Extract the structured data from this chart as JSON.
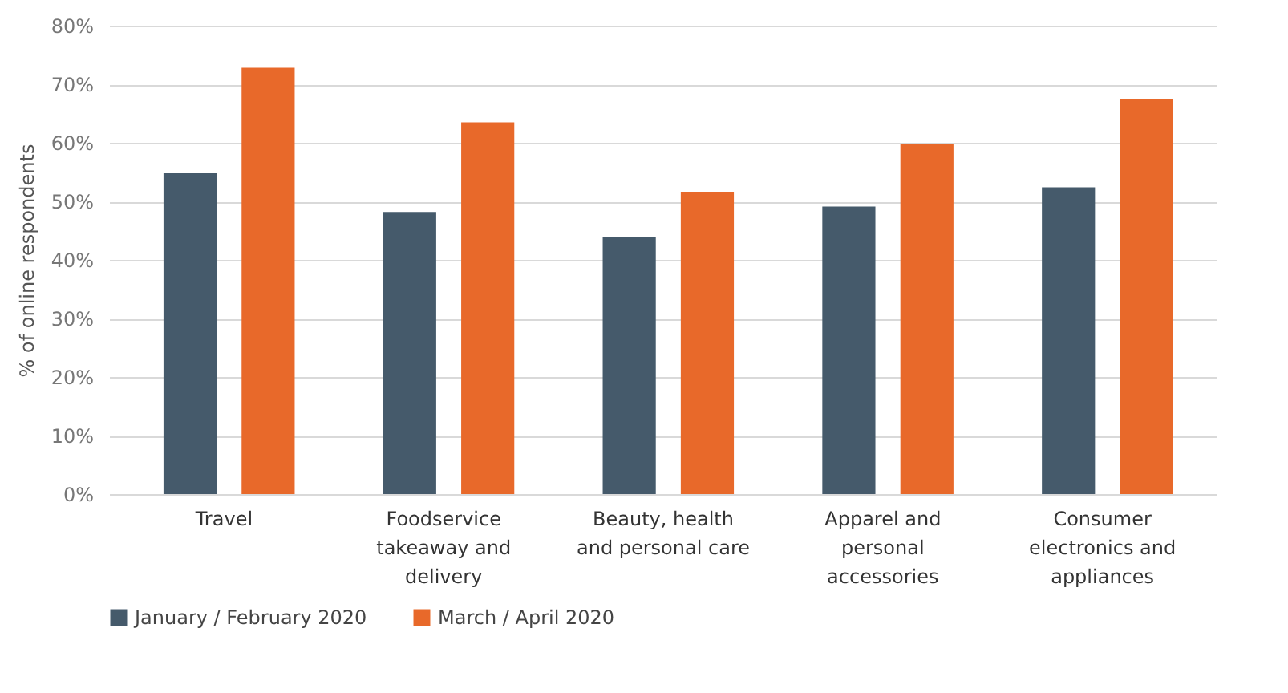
{
  "chart_data": {
    "type": "bar",
    "ylabel": "% of online respondents",
    "categories": [
      "Travel",
      "Foodservice takeaway and delivery",
      "Beauty, health and personal care",
      "Apparel and personal accessories",
      "Consumer electronics and appliances"
    ],
    "series": [
      {
        "name": "January / February 2020",
        "color": "#455a6b",
        "values": [
          54.8,
          48.2,
          43.9,
          49.1,
          52.4
        ]
      },
      {
        "name": "March / April 2020",
        "color": "#e8692a",
        "values": [
          72.8,
          63.5,
          51.6,
          59.8,
          67.5
        ]
      }
    ],
    "ylim": [
      0,
      80
    ],
    "yticks": [
      {
        "value": 0,
        "label": "0%"
      },
      {
        "value": 10,
        "label": "10%"
      },
      {
        "value": 20,
        "label": "20%"
      },
      {
        "value": 30,
        "label": "30%"
      },
      {
        "value": 40,
        "label": "40%"
      },
      {
        "value": 50,
        "label": "50%"
      },
      {
        "value": 60,
        "label": "60%"
      },
      {
        "value": 70,
        "label": "70%"
      },
      {
        "value": 80,
        "label": "80%"
      }
    ],
    "grid": "y",
    "legend": "bottom"
  }
}
